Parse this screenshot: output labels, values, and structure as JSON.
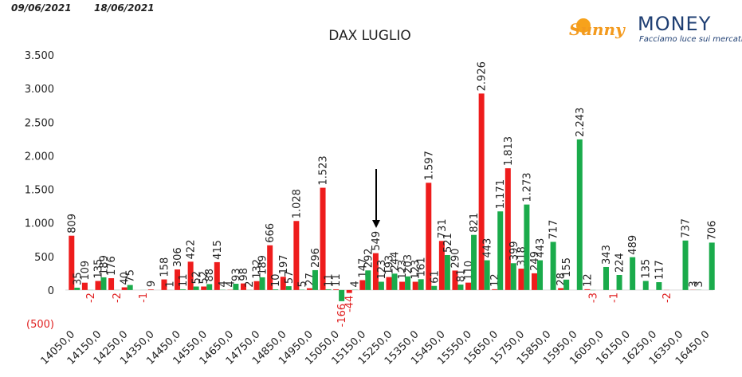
{
  "header": {
    "date_from": "09/06/2021",
    "date_to": "18/06/2021",
    "logo": "Sunny",
    "logo_money": "MONEY",
    "tagline": "Facciamo luce sui mercati"
  },
  "chart_data": {
    "type": "bar",
    "title": "DAX LUGLIO",
    "categories": [
      "14050,0",
      null,
      "14150,0",
      null,
      "14250,0",
      null,
      "14350,0",
      null,
      "14450,0",
      null,
      "14550,0",
      null,
      "14650,0",
      null,
      "14750,0",
      null,
      "14850,0",
      null,
      "14950,0",
      null,
      "15050,0",
      null,
      "15150,0",
      null,
      "15250,0",
      null,
      "15350,0",
      null,
      "15450,0",
      null,
      "15550,0",
      null,
      "15650,0",
      null,
      "15750,0",
      null,
      "15850,0",
      null,
      "15950,0",
      null,
      "16050,0",
      null,
      "16150,0",
      null,
      "16250,0",
      null,
      "16350,0",
      null,
      "16450,0"
    ],
    "series": [
      {
        "color": "#ee1c1c",
        "values": [
          809,
          109,
          135,
          176,
          40,
          0,
          9,
          158,
          306,
          422,
          52,
          415,
          4,
          98,
          132,
          666,
          197,
          1028,
          27,
          1523,
          11,
          -44,
          147,
          549,
          193,
          123,
          123,
          1597,
          731,
          290,
          110,
          2926,
          12,
          1813,
          318,
          249,
          0,
          28,
          0,
          12,
          0,
          -1,
          0,
          0,
          0,
          -2,
          0,
          3,
          0
        ],
        "value_labels": [
          "809",
          "109",
          "135",
          "176",
          "40",
          null,
          "9",
          "158",
          "306",
          "422",
          "52",
          "415",
          "4",
          "98",
          "132",
          "666",
          "197",
          "1.028",
          "27",
          "1.523",
          "11",
          "-44",
          "147",
          "549",
          "193",
          "123",
          "123",
          "1.597",
          "731",
          "290",
          "110",
          "2.926",
          "12",
          "1.813",
          "318",
          "249",
          null,
          "28",
          null,
          "12",
          null,
          "-1",
          null,
          null,
          null,
          "-2",
          null,
          "3",
          null
        ]
      },
      {
        "color": "#1aab4b",
        "values": [
          35,
          -2,
          189,
          -2,
          75,
          -1,
          0,
          1,
          11,
          52,
          88,
          4,
          93,
          2,
          189,
          10,
          57,
          5,
          296,
          11,
          -166,
          4,
          292,
          123,
          244,
          203,
          161,
          61,
          521,
          81,
          821,
          443,
          1171,
          399,
          1273,
          443,
          717,
          155,
          2243,
          -3,
          343,
          224,
          489,
          135,
          117,
          0,
          737,
          3,
          706
        ],
        "value_labels": [
          "35",
          "-2",
          "189",
          "-2",
          "75",
          "-1",
          null,
          "1",
          "11",
          "52",
          "88",
          "4",
          "93",
          "2",
          "189",
          "10",
          "57",
          "5",
          "296",
          "11",
          "-166",
          "4",
          "292",
          "123",
          "244",
          "203",
          "161",
          "61",
          "521",
          "81",
          "821",
          "443",
          "1.171",
          "399",
          "1.273",
          "443",
          "717",
          "155",
          "2.243",
          "-3",
          "343",
          "224",
          "489",
          "135",
          "117",
          null,
          "737",
          "3",
          "706"
        ]
      }
    ],
    "ylim": [
      -500,
      3500
    ],
    "yticks": [
      {
        "value": -500,
        "label": "(500)"
      },
      0,
      500,
      {
        "value": 1000,
        "label": "1.000"
      },
      {
        "value": 1500,
        "label": "1.500"
      },
      {
        "value": 2000,
        "label": "2.000"
      },
      {
        "value": 2500,
        "label": "2.500"
      },
      {
        "value": 3000,
        "label": "3.000"
      },
      {
        "value": 3500,
        "label": "3.500"
      }
    ]
  }
}
